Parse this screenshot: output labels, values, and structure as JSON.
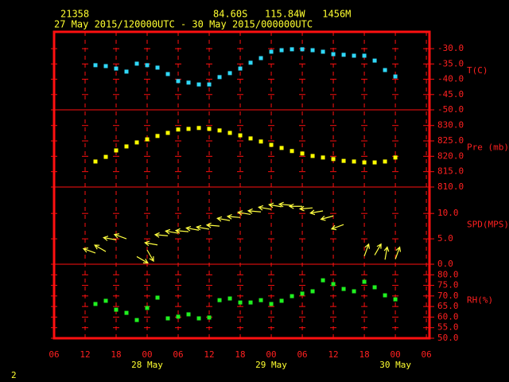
{
  "header": {
    "station": "21358",
    "location": "84.60S   115.84W   1456M",
    "period": "27 May 2015/120000UTC - 30 May 2015/000000UTC"
  },
  "footer": "2",
  "chart_data": {
    "type": "meteogram",
    "x": [
      8,
      10,
      12,
      14,
      16,
      18,
      20,
      22,
      24,
      26,
      28,
      30,
      32,
      34,
      36,
      38,
      40,
      42,
      44,
      46,
      48,
      50,
      52,
      54,
      56,
      58,
      60,
      62,
      64,
      66
    ],
    "xlim": [
      0,
      72.6
    ],
    "xticks": [
      {
        "value": 0,
        "label": "06"
      },
      {
        "value": 6,
        "label": "12"
      },
      {
        "value": 12,
        "label": "18"
      },
      {
        "value": 18,
        "label": "00"
      },
      {
        "value": 24,
        "label": "06"
      },
      {
        "value": 30,
        "label": "12"
      },
      {
        "value": 36,
        "label": "18"
      },
      {
        "value": 42,
        "label": "00"
      },
      {
        "value": 48,
        "label": "06"
      },
      {
        "value": 54,
        "label": "12"
      },
      {
        "value": 60,
        "label": "18"
      },
      {
        "value": 66,
        "label": "00"
      },
      {
        "value": 72,
        "label": "06"
      }
    ],
    "date_labels": [
      {
        "value": 18,
        "label": "28 May"
      },
      {
        "value": 42,
        "label": "29 May"
      },
      {
        "value": 66,
        "label": "30 May"
      }
    ],
    "frame_color": "#ff1010",
    "panels": [
      {
        "type": "scatter",
        "ylabel": "T(C)",
        "color": "#30d8f8",
        "ylim": [
          -50,
          -24.5
        ],
        "yticks": [
          {
            "value": -30,
            "label": "-30.0"
          },
          {
            "value": -35,
            "label": "-35.0"
          },
          {
            "value": -40,
            "label": "-40.0"
          },
          {
            "value": -45,
            "label": "-45.0"
          },
          {
            "value": -50,
            "label": "-50.0"
          }
        ],
        "values": [
          -35.4,
          -35.7,
          -36.5,
          -37.5,
          -34.9,
          -35.4,
          -36.2,
          -38.3,
          -40.6,
          -41.1,
          -41.7,
          -41.7,
          -39.3,
          -38.0,
          -36.5,
          -34.6,
          -33.1,
          -31.0,
          -30.5,
          -30.2,
          -30.2,
          -30.5,
          -31.0,
          -31.8,
          -32.0,
          -32.3,
          -32.3,
          -33.9,
          -37.0,
          -39.1
        ]
      },
      {
        "type": "scatter",
        "ylabel": "Pre (mb)",
        "color": "#ffff00",
        "ylim": [
          810,
          835.1
        ],
        "yticks": [
          {
            "value": 830,
            "label": "830.0"
          },
          {
            "value": 825,
            "label": "825.0"
          },
          {
            "value": 820,
            "label": "820.0"
          },
          {
            "value": 815,
            "label": "815.0"
          },
          {
            "value": 810,
            "label": "810.0"
          }
        ],
        "values": [
          818.3,
          819.8,
          821.9,
          823.2,
          824.5,
          825.5,
          826.6,
          827.6,
          828.7,
          828.9,
          829.2,
          828.9,
          828.4,
          827.6,
          826.8,
          825.8,
          824.8,
          823.7,
          822.7,
          821.7,
          820.9,
          820.1,
          819.6,
          819.1,
          818.5,
          818.3,
          818.0,
          818.0,
          818.3,
          819.6
        ]
      },
      {
        "type": "wind",
        "ylabel": "SPD(MPS)",
        "color": "#ffff40",
        "ylim": [
          0,
          15.2
        ],
        "yticks": [
          {
            "value": 10,
            "label": "10.0"
          },
          {
            "value": 5,
            "label": "5.0"
          },
          {
            "value": 0,
            "label": "0.0"
          }
        ],
        "values": [
          2.2,
          2.5,
          4.8,
          5.0,
          1.5,
          2.8,
          3.8,
          5.6,
          6.1,
          6.4,
          6.7,
          6.9,
          7.5,
          8.6,
          9.2,
          9.8,
          10.3,
          10.8,
          11.3,
          11.6,
          11.4,
          11.1,
          10.5,
          9.5,
          7.8,
          null,
          1.6,
          1.8,
          0.9,
          1.0
        ],
        "directions": [
          110,
          120,
          100,
          110,
          300,
          330,
          100,
          95,
          100,
          95,
          100,
          100,
          95,
          100,
          95,
          100,
          95,
          100,
          100,
          95,
          90,
          85,
          80,
          75,
          70,
          null,
          200,
          210,
          190,
          200
        ]
      },
      {
        "type": "scatter",
        "ylabel": "RH(%)",
        "color": "#20f020",
        "ylim": [
          50,
          85
        ],
        "yticks": [
          {
            "value": 80,
            "label": "80.0"
          },
          {
            "value": 75,
            "label": "75.0"
          },
          {
            "value": 70,
            "label": "70.0"
          },
          {
            "value": 65,
            "label": "65.0"
          },
          {
            "value": 60,
            "label": "60.0"
          },
          {
            "value": 55,
            "label": "55.0"
          },
          {
            "value": 50,
            "label": "50.0"
          }
        ],
        "values": [
          66.2,
          67.7,
          63.5,
          62.0,
          58.6,
          64.3,
          69.2,
          59.4,
          60.2,
          61.3,
          59.4,
          59.8,
          68.0,
          68.8,
          66.9,
          66.9,
          68.0,
          66.2,
          67.7,
          69.9,
          71.1,
          72.2,
          77.4,
          75.6,
          73.3,
          72.2,
          76.7,
          74.1,
          70.3,
          68.4
        ]
      }
    ]
  }
}
